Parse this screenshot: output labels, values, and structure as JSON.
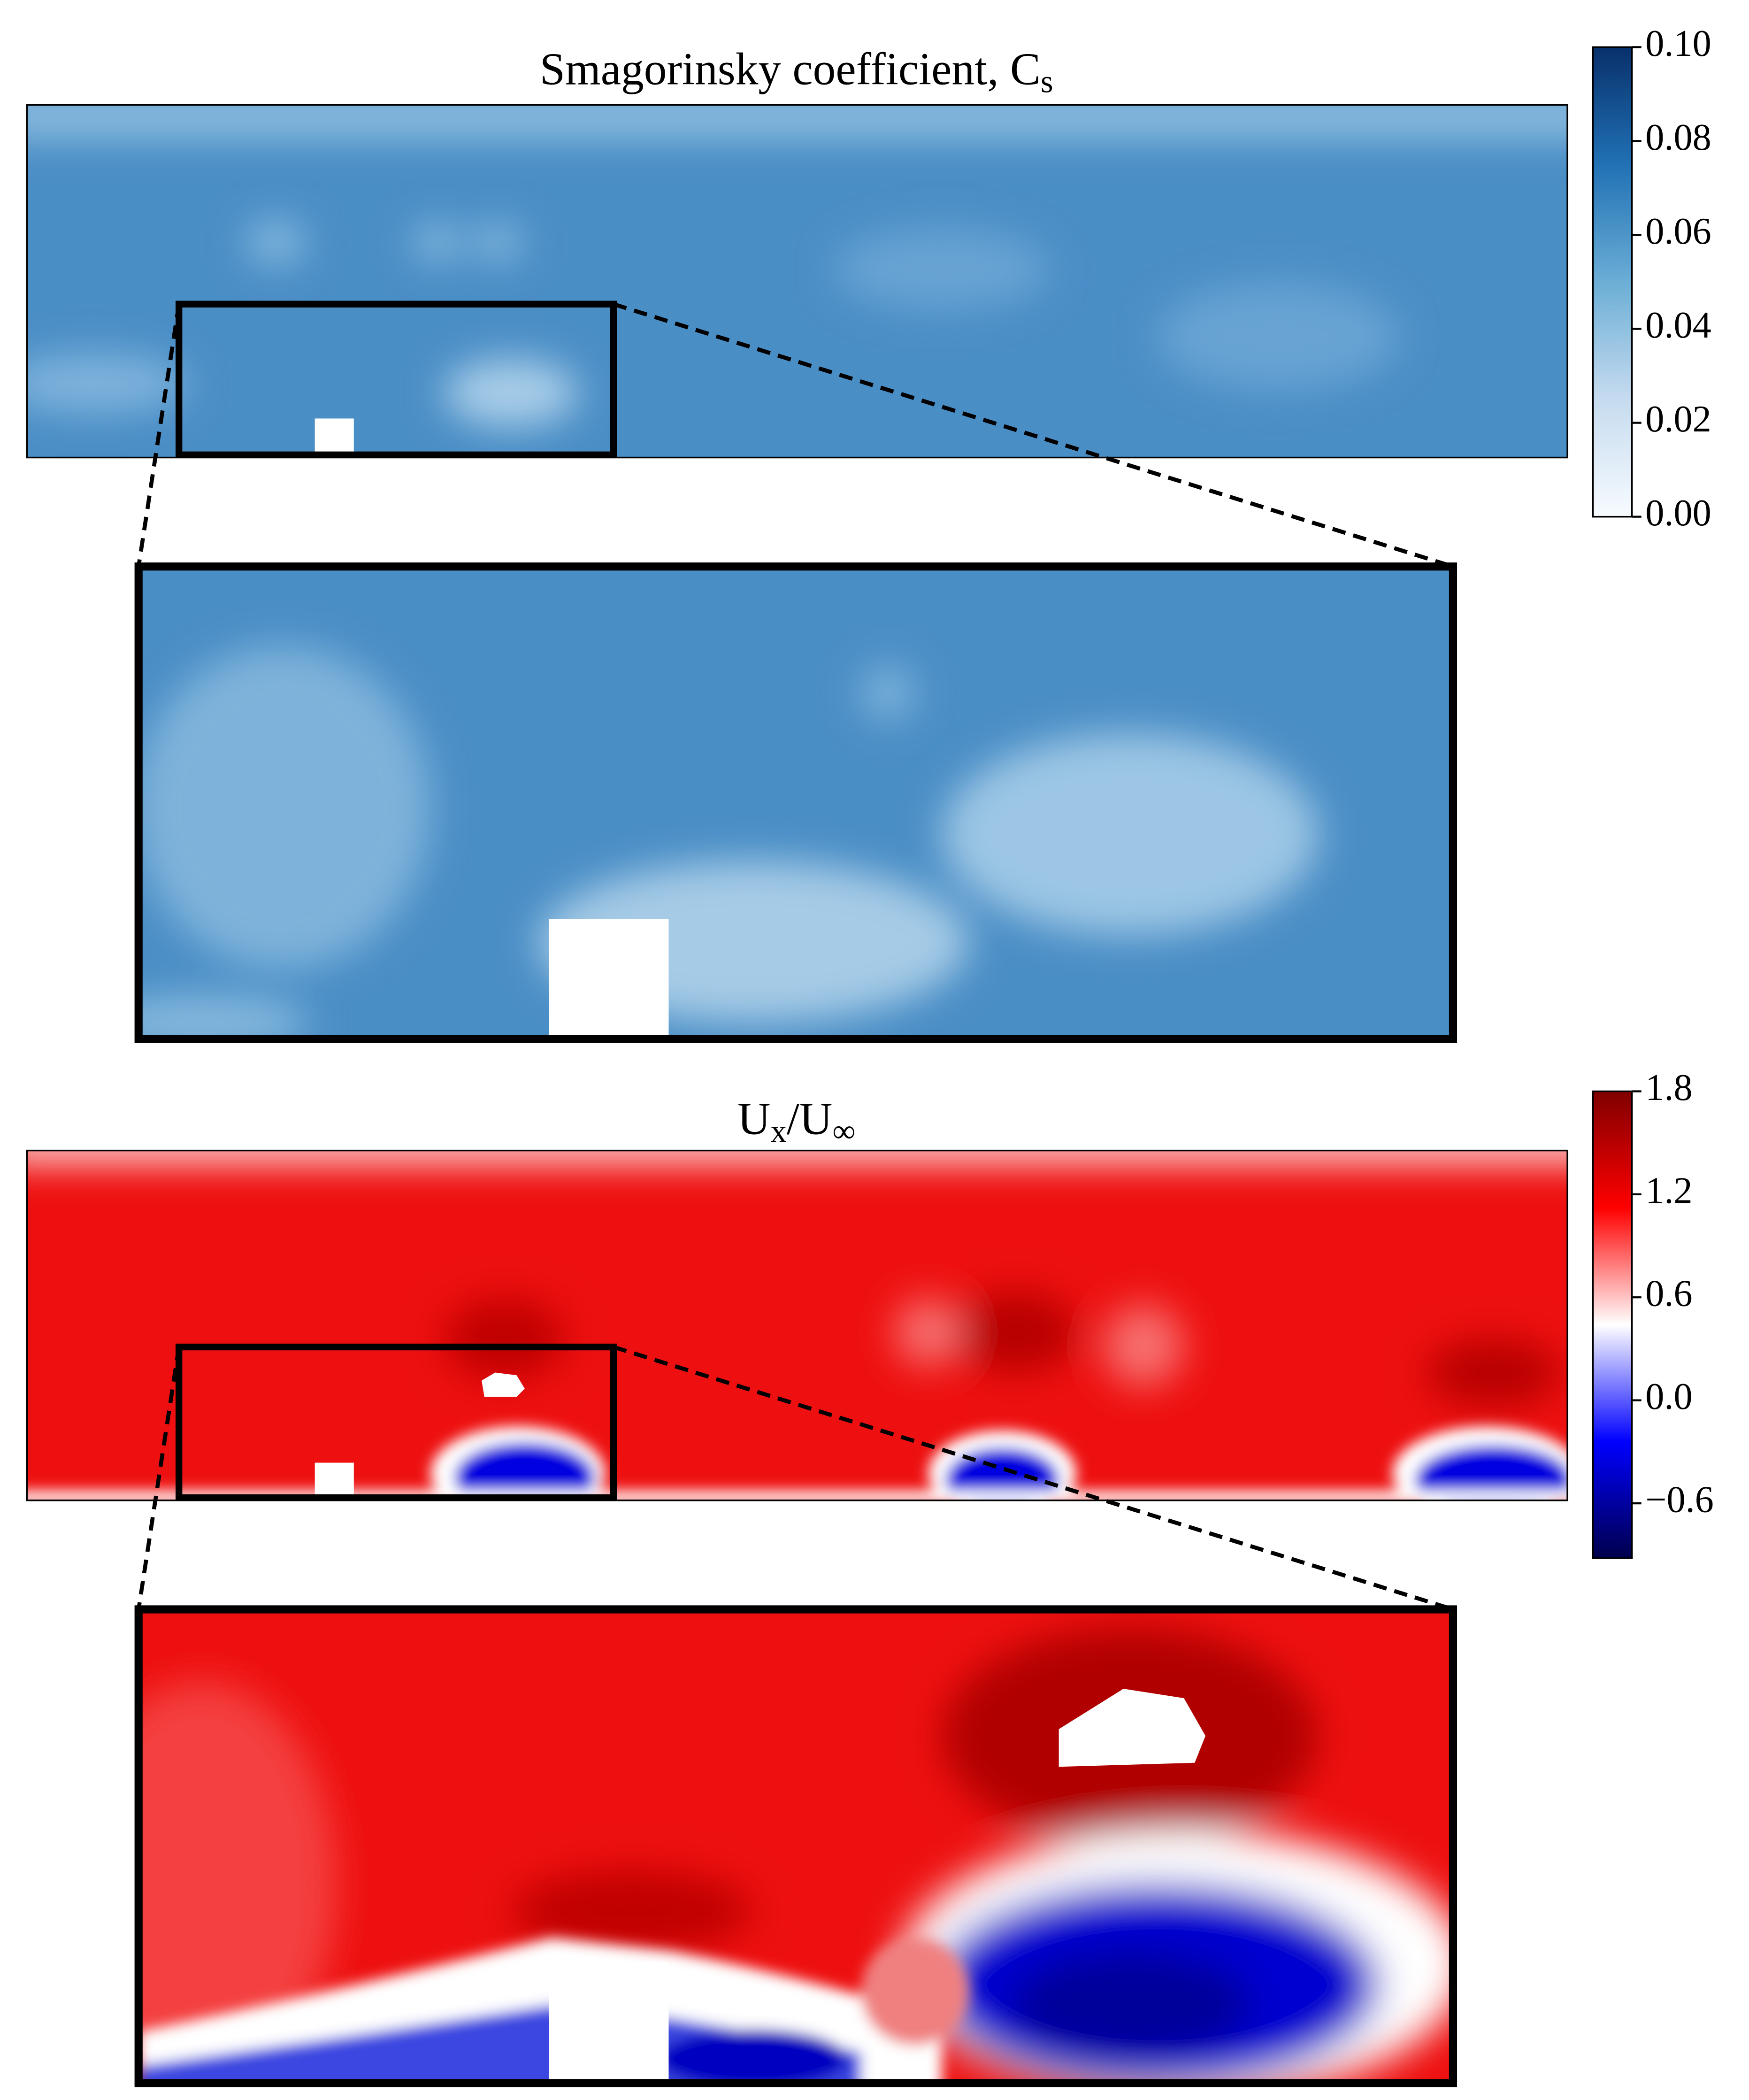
{
  "chart_data": [
    {
      "type": "contour",
      "title": [
        {
          "text": "Smagorinsky coefficient, C"
        },
        {
          "text": "s",
          "sub": true
        }
      ],
      "colormap": "Blues",
      "clim": [
        0,
        0.1
      ],
      "cticks": [
        {
          "value": 0,
          "label": "0.00"
        },
        {
          "value": 0.02,
          "label": "0.02"
        },
        {
          "value": 0.04,
          "label": "0.04"
        },
        {
          "value": 0.06,
          "label": "0.06"
        },
        {
          "value": 0.08,
          "label": "0.08"
        },
        {
          "value": 0.1,
          "label": "0.10"
        }
      ]
    },
    {
      "type": "contour",
      "title": [
        {
          "text": "U"
        },
        {
          "text": "x",
          "sub": true
        },
        {
          "text": "/U"
        },
        {
          "text": "∞",
          "sub": true
        }
      ],
      "colormap": "seismic",
      "clim": [
        -0.92,
        1.8
      ],
      "cticks": [
        {
          "value": -0.6,
          "label": "−0.6"
        },
        {
          "value": 0,
          "label": "0.0"
        },
        {
          "value": 0.6,
          "label": "0.6"
        },
        {
          "value": 1.2,
          "label": "1.2"
        },
        1.8
      ]
    }
  ]
}
